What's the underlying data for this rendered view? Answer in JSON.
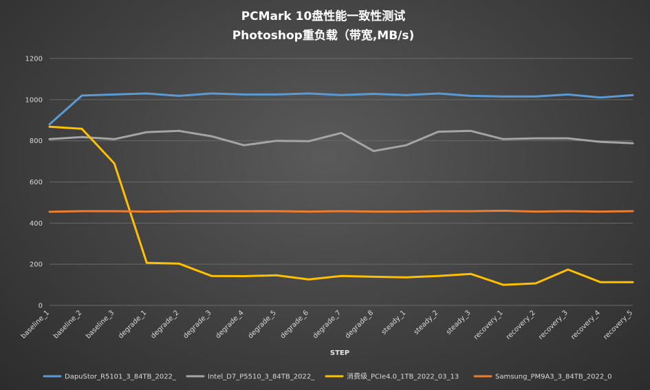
{
  "chart_data": {
    "type": "line",
    "title": [
      "PCMark  10盘性能一致性测试",
      "Photoshop重负载（带宽,MB/s)"
    ],
    "xlabel": "STEP",
    "ylabel": "",
    "ylim": [
      0,
      1200
    ],
    "yticks": [
      0,
      200,
      400,
      600,
      800,
      1000,
      1200
    ],
    "grid": true,
    "legend_position": "bottom",
    "categories": [
      "baseline_1",
      "baseline_2",
      "baseline_3",
      "degrade_1",
      "degrade_2",
      "degrade_3",
      "degrade_4",
      "degrade_5",
      "degrade_6",
      "degrade_7",
      "degrade_8",
      "steady_1",
      "steady_2",
      "steady_3",
      "recovery_1",
      "recovery_2",
      "recovery_3",
      "recovery_4",
      "recovery_5"
    ],
    "series": [
      {
        "name": "DapuStor_R5101_3_84TB_2022_",
        "color": "#5b9bd5",
        "values": [
          880,
          1020,
          1025,
          1030,
          1018,
          1030,
          1025,
          1025,
          1030,
          1022,
          1028,
          1022,
          1030,
          1018,
          1015,
          1015,
          1025,
          1010,
          1022
        ]
      },
      {
        "name": "Intel_D7_P5510_3_84TB_2022_",
        "color": "#a5a5a5",
        "values": [
          808,
          818,
          808,
          842,
          848,
          822,
          778,
          800,
          798,
          838,
          750,
          778,
          844,
          848,
          808,
          812,
          812,
          795,
          788
        ]
      },
      {
        "name": "消费级_PCIe4.0_1TB_2022_03_13",
        "color": "#ffc000",
        "values": [
          868,
          858,
          690,
          207,
          203,
          143,
          142,
          146,
          126,
          143,
          139,
          136,
          143,
          153,
          100,
          107,
          174,
          113,
          113
        ]
      },
      {
        "name": "Samsung_PM9A3_3_84TB_2022_0",
        "color": "#ed7d31",
        "values": [
          455,
          458,
          458,
          456,
          458,
          458,
          458,
          458,
          456,
          458,
          456,
          456,
          458,
          458,
          460,
          456,
          458,
          456,
          458
        ]
      }
    ]
  }
}
